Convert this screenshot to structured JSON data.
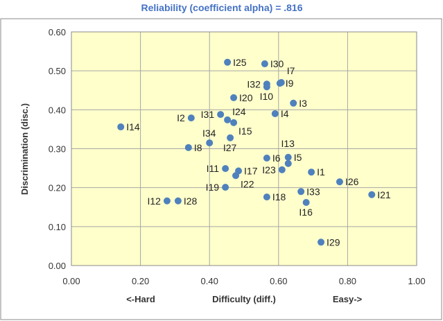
{
  "chart_data": {
    "type": "scatter",
    "title": "Reliability (coefficient alpha) =  .816",
    "xlabel": "Difficulty (diff.)",
    "xlabel_left": "<-Hard",
    "xlabel_right": "Easy->",
    "ylabel": "Discrimination (disc.)",
    "xlim": [
      0,
      1
    ],
    "ylim": [
      0,
      0.6
    ],
    "xticks": [
      "0.00",
      "0.20",
      "0.40",
      "0.60",
      "0.80",
      "1.00"
    ],
    "yticks": [
      "0.00",
      "0.10",
      "0.20",
      "0.30",
      "0.40",
      "0.50",
      "0.60"
    ],
    "grid": true,
    "colors": {
      "point": "#4f81bd",
      "plot_bg": "#ffffcc",
      "title": "#4472c4",
      "grid": "#a6a6a6"
    },
    "points": [
      {
        "label": "I25",
        "x": 0.452,
        "y": 0.522
      },
      {
        "label": "I30",
        "x": 0.56,
        "y": 0.518
      },
      {
        "label": "I32",
        "x": 0.566,
        "y": 0.466
      },
      {
        "label": "I10",
        "x": 0.566,
        "y": 0.459
      },
      {
        "label": "I9",
        "x": 0.604,
        "y": 0.468
      },
      {
        "label": "I7",
        "x": 0.608,
        "y": 0.47
      },
      {
        "label": "I20",
        "x": 0.47,
        "y": 0.431
      },
      {
        "label": "I3",
        "x": 0.643,
        "y": 0.417
      },
      {
        "label": "I4",
        "x": 0.59,
        "y": 0.39
      },
      {
        "label": "I31",
        "x": 0.432,
        "y": 0.388
      },
      {
        "label": "I24",
        "x": 0.452,
        "y": 0.374
      },
      {
        "label": "I15",
        "x": 0.47,
        "y": 0.367
      },
      {
        "label": "I2",
        "x": 0.347,
        "y": 0.379
      },
      {
        "label": "I14",
        "x": 0.143,
        "y": 0.356
      },
      {
        "label": "I27",
        "x": 0.46,
        "y": 0.328
      },
      {
        "label": "I34",
        "x": 0.4,
        "y": 0.315
      },
      {
        "label": "I8",
        "x": 0.339,
        "y": 0.303
      },
      {
        "label": "I6",
        "x": 0.566,
        "y": 0.276
      },
      {
        "label": "I5",
        "x": 0.628,
        "y": 0.278
      },
      {
        "label": "I13",
        "x": 0.628,
        "y": 0.262
      },
      {
        "label": "I23",
        "x": 0.61,
        "y": 0.246
      },
      {
        "label": "I1",
        "x": 0.695,
        "y": 0.24
      },
      {
        "label": "I11",
        "x": 0.446,
        "y": 0.249
      },
      {
        "label": "I17",
        "x": 0.484,
        "y": 0.243
      },
      {
        "label": "I22",
        "x": 0.476,
        "y": 0.231
      },
      {
        "label": "I19",
        "x": 0.446,
        "y": 0.201
      },
      {
        "label": "I26",
        "x": 0.777,
        "y": 0.215
      },
      {
        "label": "I21",
        "x": 0.87,
        "y": 0.182
      },
      {
        "label": "I18",
        "x": 0.566,
        "y": 0.176
      },
      {
        "label": "I33",
        "x": 0.665,
        "y": 0.19
      },
      {
        "label": "I16",
        "x": 0.68,
        "y": 0.162
      },
      {
        "label": "I29",
        "x": 0.723,
        "y": 0.06
      },
      {
        "label": "I12",
        "x": 0.277,
        "y": 0.166
      },
      {
        "label": "I28",
        "x": 0.309,
        "y": 0.166
      }
    ]
  }
}
